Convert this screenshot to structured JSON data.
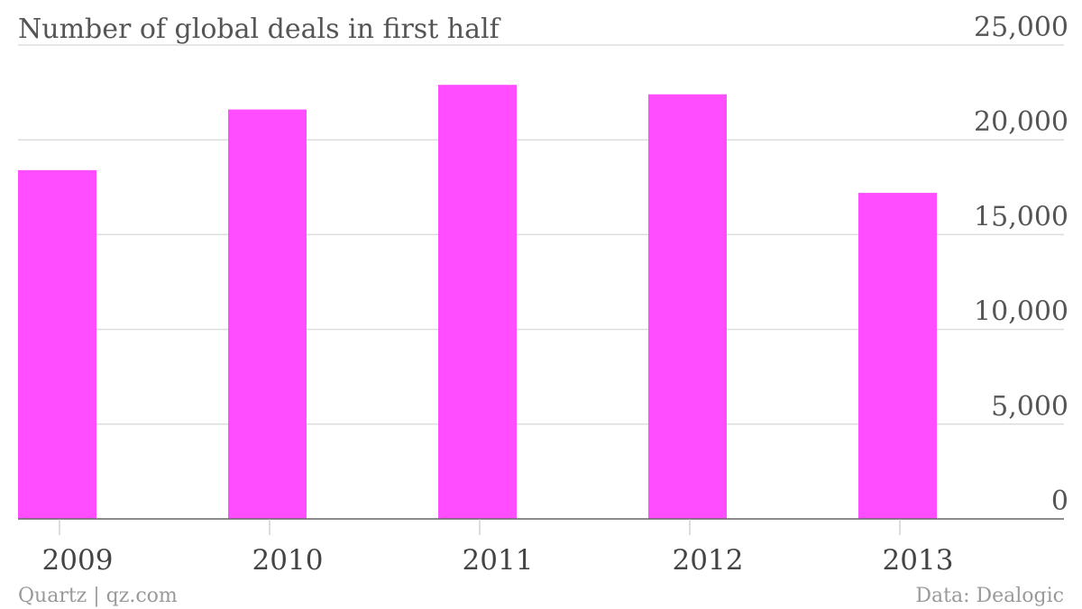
{
  "chart_data": {
    "type": "bar",
    "title": "Number of global deals in first half",
    "categories": [
      "2009",
      "2010",
      "2011",
      "2012",
      "2013"
    ],
    "values": [
      18400,
      21600,
      22900,
      22400,
      17200
    ],
    "ylim": [
      0,
      25000
    ],
    "y_ticks": [
      "0",
      "5,000",
      "10,000",
      "15,000",
      "20,000",
      "25,000"
    ],
    "y_axis_position": "right",
    "grid": true,
    "bar_color": "#ff4dff"
  },
  "footer": {
    "source_left": "Quartz | qz.com",
    "source_right": "Data: Dealogic"
  }
}
